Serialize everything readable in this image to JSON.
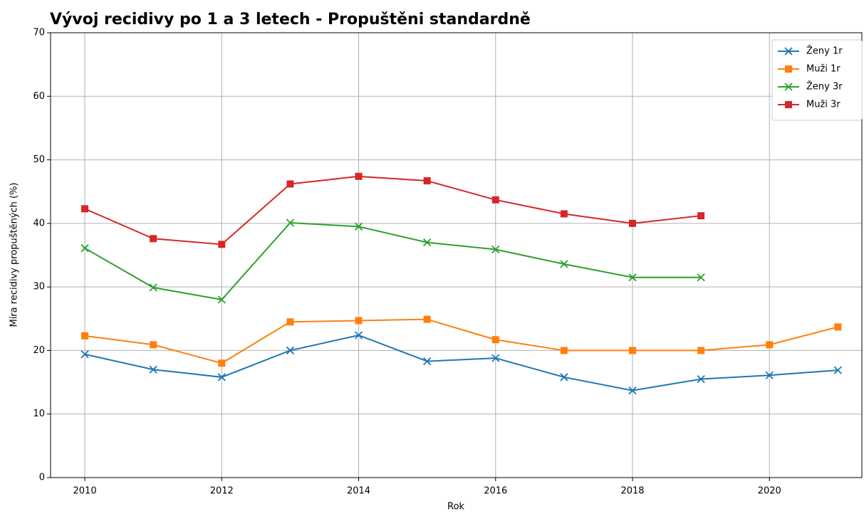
{
  "chart_data": {
    "type": "line",
    "title": "Vývoj recidivy po 1 a 3 letech - Propuštěni standardně",
    "x_label": "Rok",
    "y_label": "Míra recidivy propuštěných (%)",
    "x": [
      2010,
      2011,
      2012,
      2013,
      2014,
      2015,
      2016,
      2017,
      2018,
      2019,
      2020,
      2021
    ],
    "series": [
      {
        "name": "Ženy 1r",
        "color": "#1f77b4",
        "marker": "x",
        "values": [
          19.4,
          17.0,
          15.8,
          20.0,
          22.4,
          18.3,
          18.8,
          15.8,
          13.7,
          15.5,
          16.1,
          16.9
        ]
      },
      {
        "name": "Muži 1r",
        "color": "#ff7f0e",
        "marker": "s",
        "values": [
          22.3,
          20.9,
          18.0,
          24.5,
          24.7,
          24.9,
          21.7,
          20.0,
          20.0,
          20.0,
          20.9,
          23.7
        ]
      },
      {
        "name": "Ženy 3r",
        "color": "#2ca02c",
        "marker": "x",
        "values": [
          36.1,
          29.9,
          28.0,
          40.1,
          39.5,
          37.0,
          35.9,
          33.6,
          31.5,
          31.5,
          null,
          null
        ]
      },
      {
        "name": "Muži 3r",
        "color": "#d62728",
        "marker": "s",
        "values": [
          42.3,
          37.6,
          36.7,
          46.2,
          47.4,
          46.7,
          43.7,
          41.5,
          40.0,
          41.2,
          null,
          null
        ]
      }
    ],
    "xlim": [
      2009.5,
      2021.35
    ],
    "xticks": [
      2010,
      2012,
      2014,
      2016,
      2018,
      2020
    ],
    "ylim": [
      0,
      70
    ],
    "yticks": [
      0,
      10,
      20,
      30,
      40,
      50,
      60,
      70
    ],
    "grid": true,
    "legend": "upper right"
  }
}
